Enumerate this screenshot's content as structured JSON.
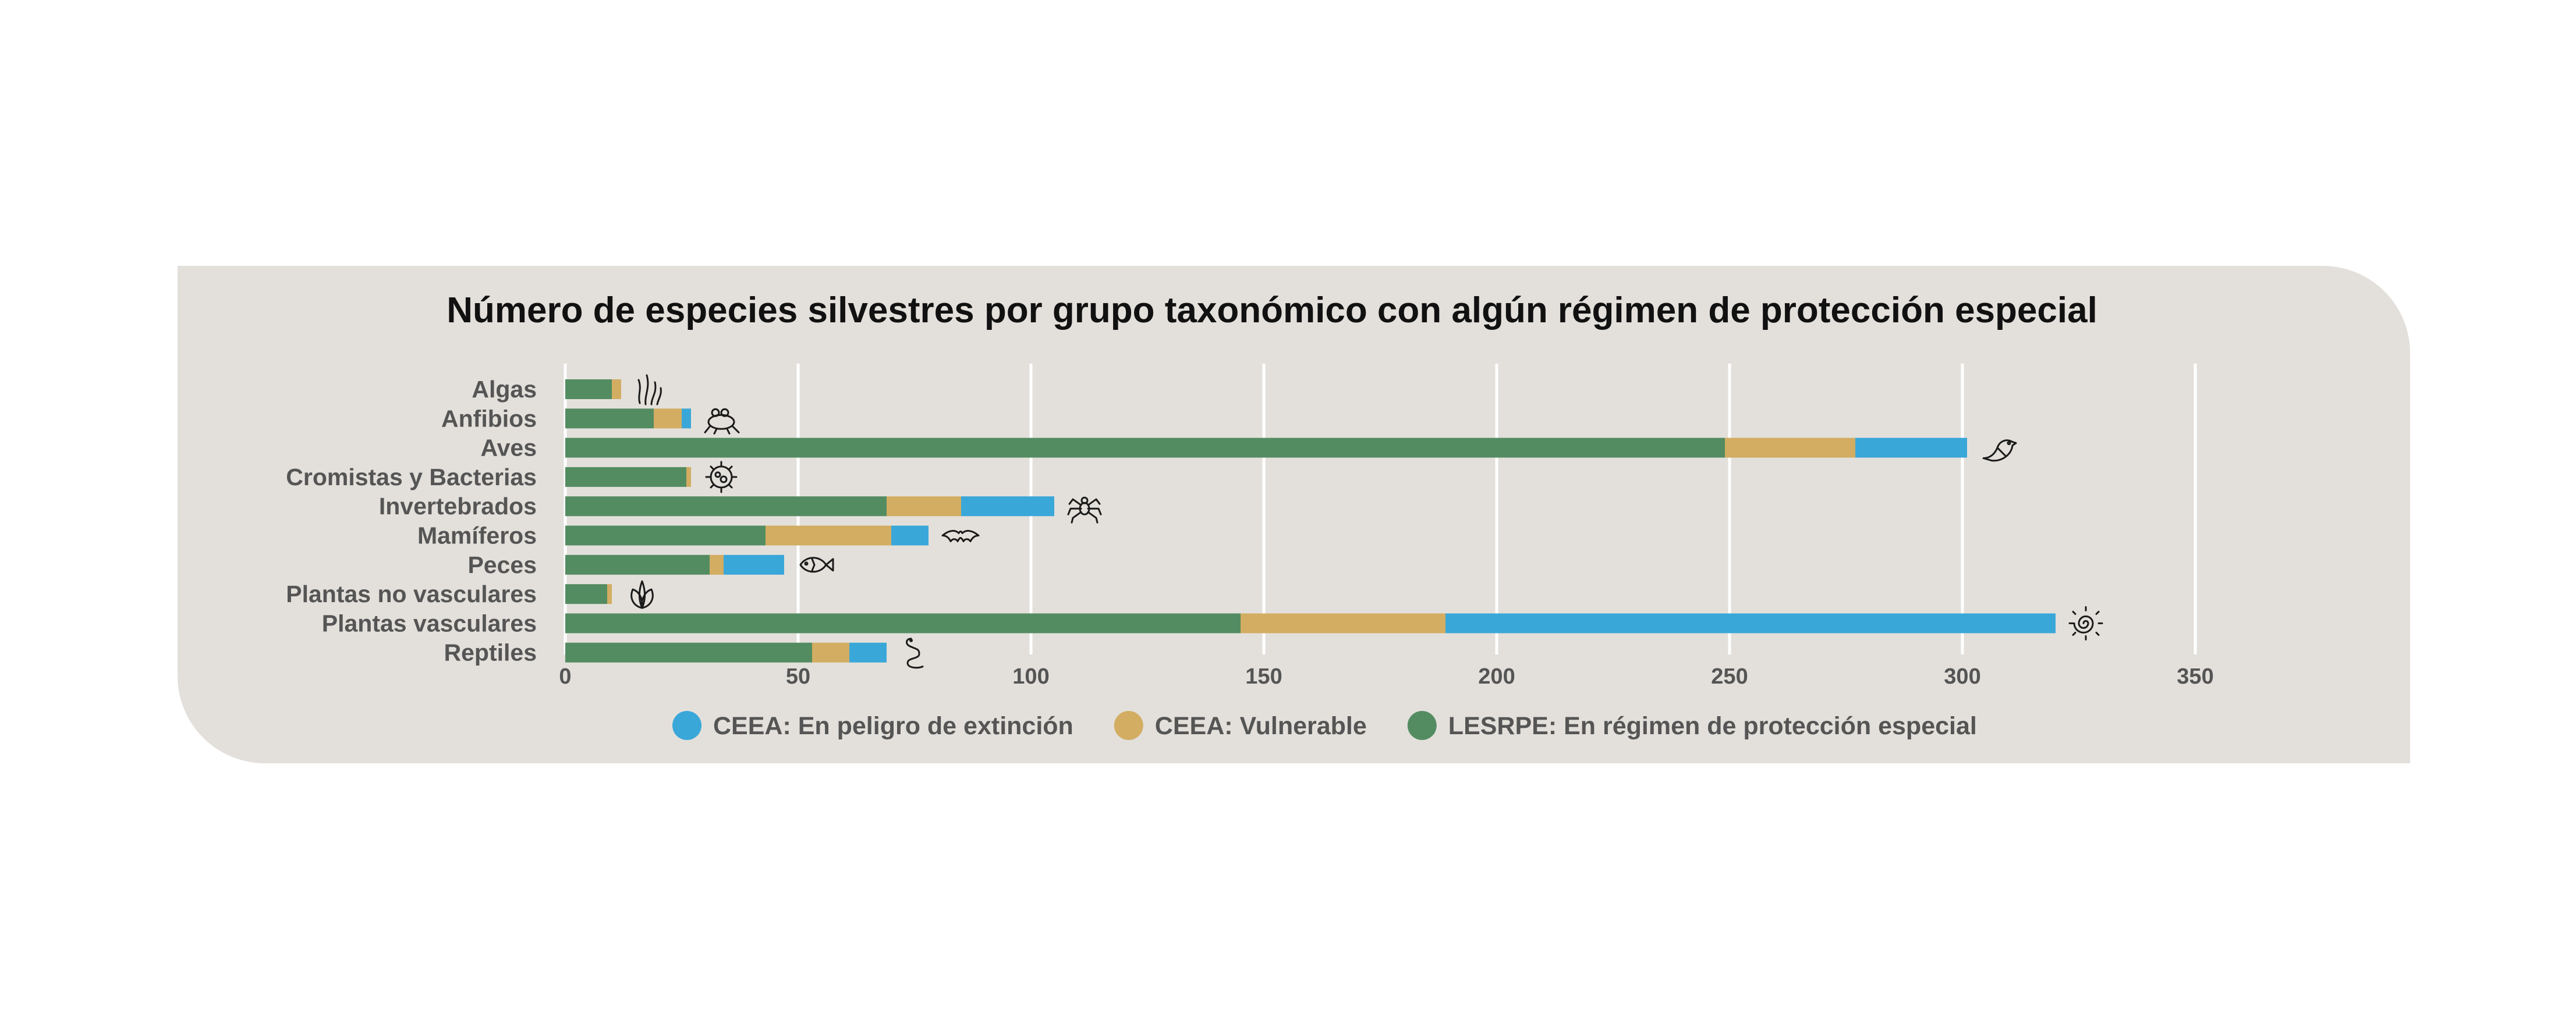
{
  "chart_data": {
    "type": "bar",
    "orientation": "horizontal",
    "stacked": true,
    "title": "Número de especies silvestres por grupo taxonómico con algún régimen de protección especial",
    "xlabel": "",
    "ylabel": "",
    "xlim": [
      0,
      350
    ],
    "xticks": [
      0,
      50,
      100,
      150,
      200,
      250,
      300,
      350
    ],
    "grid": "vertical",
    "legend_position": "bottom",
    "categories": [
      "Algas",
      "Anfibios",
      "Aves",
      "Cromistas y Bacterias",
      "Invertebrados",
      "Mamíferos",
      "Peces",
      "Plantas no vasculares",
      "Plantas vasculares",
      "Reptiles"
    ],
    "category_icons": [
      "seaweed-icon",
      "frog-icon",
      "bird-icon",
      "bacteria-icon",
      "spider-icon",
      "bat-icon",
      "fish-icon",
      "leaves-icon",
      "fern-spiral-icon",
      "snake-icon"
    ],
    "series": [
      {
        "name": "LESRPE: En régimen de protección especial",
        "color": "#548c62",
        "values": [
          10,
          19,
          249,
          26,
          69,
          43,
          31,
          9,
          145,
          53
        ]
      },
      {
        "name": "CEEA: Vulnerable",
        "color": "#d2ad62",
        "values": [
          2,
          6,
          28,
          1,
          16,
          27,
          3,
          1,
          44,
          8
        ]
      },
      {
        "name": "CEEA: En peligro de extinción",
        "color": "#3aa7d9",
        "values": [
          0,
          2,
          24,
          0,
          20,
          8,
          13,
          0,
          131,
          8
        ]
      }
    ],
    "legend": [
      {
        "label": "CEEA: En peligro de extinción",
        "color": "#3aa7d9"
      },
      {
        "label": "CEEA: Vulnerable",
        "color": "#d2ad62"
      },
      {
        "label": "LESRPE: En régimen de protección especial",
        "color": "#548c62"
      }
    ]
  }
}
